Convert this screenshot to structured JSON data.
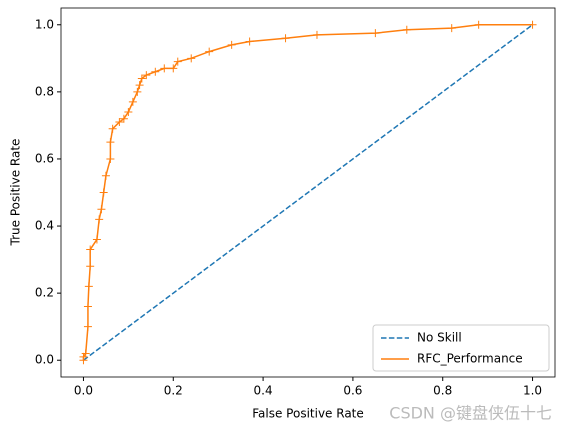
{
  "chart_data": {
    "type": "line",
    "xlabel": "False Positive Rate",
    "ylabel": "True Positive Rate",
    "xlim": [
      -0.05,
      1.05
    ],
    "ylim": [
      -0.05,
      1.05
    ],
    "xticks": [
      {
        "value": 0,
        "label": "0.0"
      },
      {
        "value": 0.2,
        "label": "0.2"
      },
      {
        "value": 0.4,
        "label": "0.4"
      },
      {
        "value": 0.6,
        "label": "0.6"
      },
      {
        "value": 0.8,
        "label": "0.8"
      },
      {
        "value": 1,
        "label": "1.0"
      }
    ],
    "yticks": [
      {
        "value": 0,
        "label": "0.0"
      },
      {
        "value": 0.2,
        "label": "0.2"
      },
      {
        "value": 0.4,
        "label": "0.4"
      },
      {
        "value": 0.6,
        "label": "0.6"
      },
      {
        "value": 0.8,
        "label": "0.8"
      },
      {
        "value": 1,
        "label": "1.0"
      }
    ],
    "legend": "lower right",
    "series": [
      {
        "name": "No Skill",
        "color": "#1f77b4",
        "dash": true,
        "x": [
          0,
          1
        ],
        "values": [
          0,
          1
        ]
      },
      {
        "name": "RFC_Performance",
        "color": "#ff7f0e",
        "marker": "+",
        "x": [
          0,
          0,
          0.005,
          0.01,
          0.01,
          0.012,
          0.015,
          0.015,
          0.03,
          0.035,
          0.04,
          0.045,
          0.05,
          0.06,
          0.06,
          0.065,
          0.08,
          0.09,
          0.1,
          0.11,
          0.12,
          0.125,
          0.13,
          0.14,
          0.16,
          0.18,
          0.2,
          0.21,
          0.24,
          0.28,
          0.33,
          0.37,
          0.45,
          0.52,
          0.65,
          0.72,
          0.82,
          0.88,
          1.0
        ],
        "values": [
          0,
          0.01,
          0.02,
          0.1,
          0.16,
          0.22,
          0.28,
          0.33,
          0.36,
          0.42,
          0.45,
          0.5,
          0.55,
          0.6,
          0.65,
          0.69,
          0.71,
          0.72,
          0.74,
          0.77,
          0.8,
          0.82,
          0.84,
          0.85,
          0.86,
          0.87,
          0.87,
          0.89,
          0.9,
          0.92,
          0.94,
          0.95,
          0.96,
          0.97,
          0.975,
          0.985,
          0.99,
          1.0,
          1.0
        ]
      }
    ],
    "watermark": "CSDN @键盘侠伍十七"
  }
}
